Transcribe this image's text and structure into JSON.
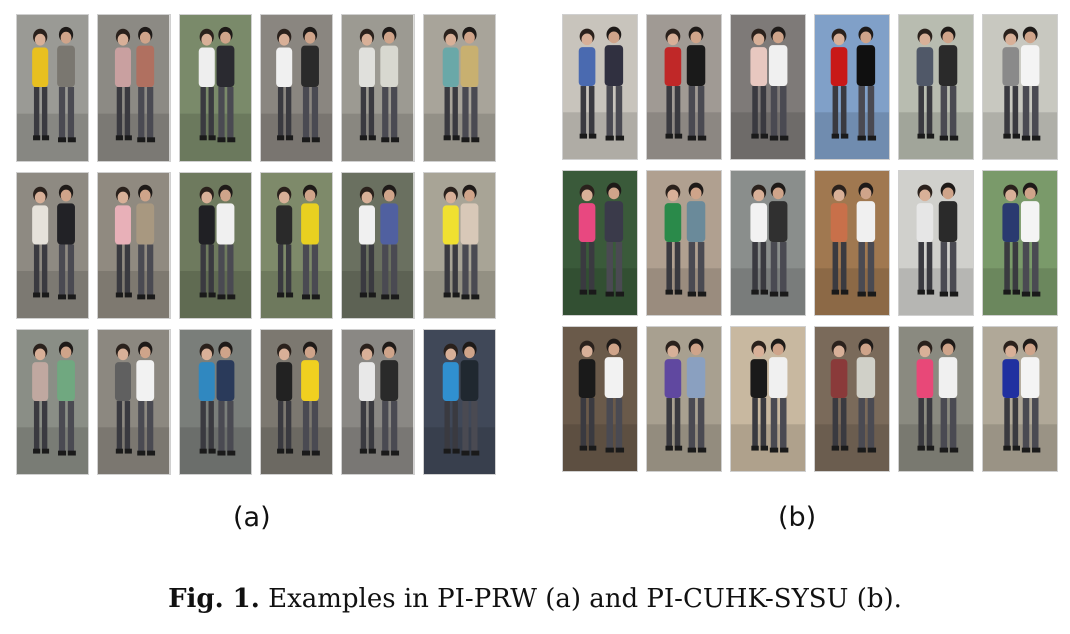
{
  "figure": {
    "panel_a": {
      "label": "(a)",
      "images": [
        {
          "bg": "#9a9a95",
          "fg": "#e8c020",
          "fg2": "#7a7770"
        },
        {
          "bg": "#8c8a84",
          "fg": "#c9a0a0",
          "fg2": "#b07060"
        },
        {
          "bg": "#7a8a6a",
          "fg": "#eeeeee",
          "fg2": "#2a2a30"
        },
        {
          "bg": "#8a8680",
          "fg": "#f0f0f0",
          "fg2": "#2a2a2a"
        },
        {
          "bg": "#9c9a92",
          "fg": "#e0e0dc",
          "fg2": "#d8d8d0"
        },
        {
          "bg": "#a8a49a",
          "fg": "#6aa8a8",
          "fg2": "#c8b070"
        },
        {
          "bg": "#8e8a82",
          "fg": "#e6e2da",
          "fg2": "#222226"
        },
        {
          "bg": "#908a80",
          "fg": "#e8b0b8",
          "fg2": "#a89880"
        },
        {
          "bg": "#6e7a5e",
          "fg": "#202024",
          "fg2": "#f0f0f0"
        },
        {
          "bg": "#7e8a6a",
          "fg": "#2a2a2a",
          "fg2": "#e8d020"
        },
        {
          "bg": "#6a7060",
          "fg": "#f0f0f0",
          "fg2": "#5060a0"
        },
        {
          "bg": "#a8a496",
          "fg": "#f0e030",
          "fg2": "#d8c8b8"
        },
        {
          "bg": "#8a8e86",
          "fg": "#c0a8a0",
          "fg2": "#70a880"
        },
        {
          "bg": "#8c8880",
          "fg": "#606060",
          "fg2": "#f2f2f2"
        },
        {
          "bg": "#7a7e7a",
          "fg": "#3088c0",
          "fg2": "#2a3a5a"
        },
        {
          "bg": "#7c7870",
          "fg": "#222222",
          "fg2": "#f0d020"
        },
        {
          "bg": "#8a8884",
          "fg": "#e8e8e8",
          "fg2": "#2a2a2a"
        },
        {
          "bg": "#404858",
          "fg": "#3090d0",
          "fg2": "#202830"
        }
      ]
    },
    "panel_b": {
      "label": "(b)",
      "images": [
        {
          "bg": "#c8c4bc",
          "fg": "#4a6ab0",
          "fg2": "#303040"
        },
        {
          "bg": "#a09a94",
          "fg": "#c02828",
          "fg2": "#1a1a1a"
        },
        {
          "bg": "#7e7a78",
          "fg": "#e8c8c0",
          "fg2": "#f0f0f0"
        },
        {
          "bg": "#80a0c8",
          "fg": "#c81818",
          "fg2": "#101010"
        },
        {
          "bg": "#b8bcb0",
          "fg": "#505868",
          "fg2": "#2a2a2a"
        },
        {
          "bg": "#c8c8c0",
          "fg": "#8a8a8a",
          "fg2": "#f4f4f4"
        },
        {
          "bg": "#3a5a3a",
          "fg": "#e84880",
          "fg2": "#3a3a4a"
        },
        {
          "bg": "#b0a090",
          "fg": "#2a8a4a",
          "fg2": "#6a8a9a"
        },
        {
          "bg": "#8a8e8c",
          "fg": "#f2f2f2",
          "fg2": "#303030"
        },
        {
          "bg": "#a07850",
          "fg": "#c8704a",
          "fg2": "#f0f0f0"
        },
        {
          "bg": "#d0d0cc",
          "fg": "#e6e6e6",
          "fg2": "#2a2a2a"
        },
        {
          "bg": "#7a9a6a",
          "fg": "#2a3a70",
          "fg2": "#f4f4f4"
        },
        {
          "bg": "#6a5a4a",
          "fg": "#1a1a1a",
          "fg2": "#f2f2f2"
        },
        {
          "bg": "#a8a090",
          "fg": "#6048a0",
          "fg2": "#8aa0c0"
        },
        {
          "bg": "#c8b8a0",
          "fg": "#1a1a1a",
          "fg2": "#f0f0f0"
        },
        {
          "bg": "#7a6a5a",
          "fg": "#8a3a3a",
          "fg2": "#d0d0c8"
        },
        {
          "bg": "#8a8a80",
          "fg": "#e84878",
          "fg2": "#f0f0f0"
        },
        {
          "bg": "#b0a898",
          "fg": "#2030a0",
          "fg2": "#f4f4f4"
        }
      ]
    },
    "caption": {
      "prefix": "Fig. 1.",
      "text": " Examples in PI-PRW (a) and PI-CUHK-SYSU (b)."
    }
  }
}
